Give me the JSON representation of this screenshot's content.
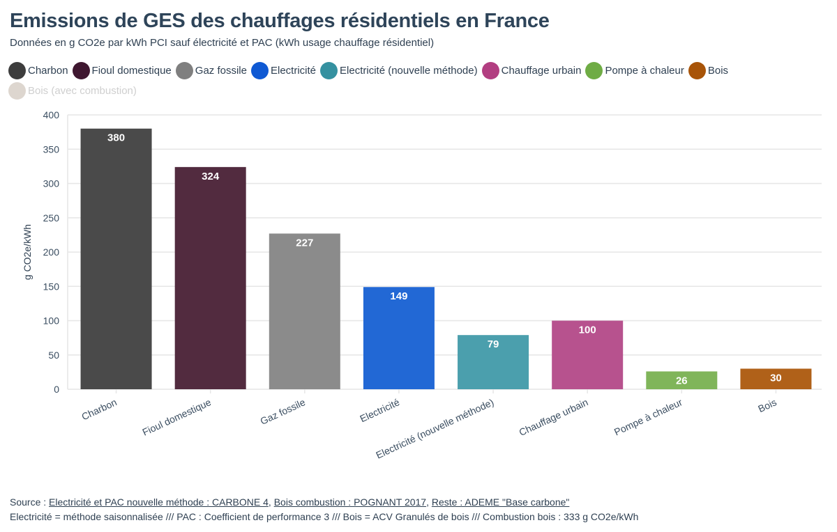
{
  "header": {
    "title": "Emissions de GES des chauffages résidentiels en France",
    "subtitle": "Données en g CO2e par kWh PCI sauf électricité et PAC (kWh usage chauffage résidentiel)"
  },
  "legend": [
    {
      "label": "Charbon",
      "color": "#3d3d3d",
      "muted": false
    },
    {
      "label": "Fioul domestique",
      "color": "#3f1730",
      "muted": false
    },
    {
      "label": "Gaz fossile",
      "color": "#7f7f7f",
      "muted": false
    },
    {
      "label": "Electricité",
      "color": "#0f59d3",
      "muted": false
    },
    {
      "label": "Electricité (nouvelle méthode)",
      "color": "#3591a0",
      "muted": false
    },
    {
      "label": "Chauffage urbain",
      "color": "#b23e81",
      "muted": false
    },
    {
      "label": "Pompe à chaleur",
      "color": "#6fac45",
      "muted": false
    },
    {
      "label": "Bois",
      "color": "#a85408",
      "muted": false
    },
    {
      "label": "Bois (avec combustion)",
      "color": "#ddd6cf",
      "muted": true
    }
  ],
  "chart_data": {
    "type": "bar",
    "title": "Emissions de GES des chauffages résidentiels en France",
    "xlabel": "",
    "ylabel": "g CO2e/kWh",
    "ylim": [
      0,
      400
    ],
    "yticks": [
      0,
      50,
      100,
      150,
      200,
      250,
      300,
      350,
      400
    ],
    "grid": true,
    "legend_position": "top",
    "categories": [
      "Charbon",
      "Fioul domestique",
      "Gaz fossile",
      "Electricité",
      "Electricité (nouvelle méthode)",
      "Chauffage urbain",
      "Pompe à chaleur",
      "Bois"
    ],
    "values": [
      380,
      324,
      227,
      149,
      79,
      100,
      26,
      30
    ],
    "colors": [
      "#4a4a4a",
      "#522b3f",
      "#8b8b8b",
      "#2268d5",
      "#4b9fad",
      "#b7528e",
      "#80b55a",
      "#b06119"
    ],
    "data_labels": [
      "380",
      "324",
      "227",
      "149",
      "79",
      "100",
      "26",
      "30"
    ]
  },
  "footer": {
    "source_prefix": "Source : ",
    "links": [
      "Electricité et PAC nouvelle méthode : CARBONE 4",
      "Bois combustion : POGNANT 2017",
      "Reste : ADEME \"Base carbone\""
    ],
    "separator": ", ",
    "note": "Electricité = méthode saisonnalisée /// PAC : Coefficient de performance 3 /// Bois = ACV Granulés de bois /// Combustion bois : 333 g CO2e/kWh"
  }
}
